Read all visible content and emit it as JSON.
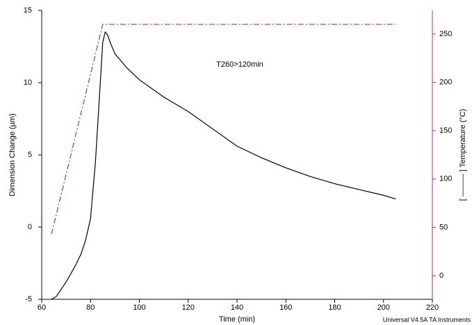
{
  "chart_data": {
    "type": "line",
    "xlabel": "Time (min)",
    "ylabel": "Dimension Change (µm)",
    "y2label": "[ ——— ] Temperature (°C)",
    "annotation": "T260>120min",
    "footer": "Universal V4.5A TA Instruments",
    "xlim": [
      60,
      220
    ],
    "xticks": [
      60,
      80,
      100,
      120,
      140,
      160,
      180,
      200,
      220
    ],
    "ylim": [
      -5,
      15
    ],
    "yticks": [
      -5,
      0,
      5,
      10,
      15
    ],
    "y2lim": [
      -24.4,
      274.4
    ],
    "y2ticks": [
      0,
      50,
      100,
      150,
      200,
      250
    ],
    "y2color": "#993399",
    "series": [
      {
        "color": "#000000",
        "dash": "solid",
        "x": [
          64,
          66,
          68,
          70,
          72,
          74,
          76,
          78,
          80,
          82,
          84,
          85,
          86,
          87,
          88,
          90,
          95,
          100,
          110,
          120,
          130,
          140,
          150,
          160,
          170,
          180,
          190,
          200,
          205
        ],
        "values": [
          -5,
          -4.8,
          -4.3,
          -3.8,
          -3.2,
          -2.6,
          -1.9,
          -0.9,
          0.6,
          4.5,
          10,
          12.8,
          13.5,
          13.3,
          12.8,
          12.0,
          11.0,
          10.2,
          9.0,
          8.0,
          6.8,
          5.6,
          4.8,
          4.1,
          3.5,
          3.0,
          2.6,
          2.2,
          1.95
        ]
      },
      {
        "color": "#993399",
        "dash": "dashdot",
        "axis": "y2",
        "x": [
          64,
          85,
          205
        ],
        "values": [
          43,
          260,
          260
        ]
      }
    ]
  }
}
